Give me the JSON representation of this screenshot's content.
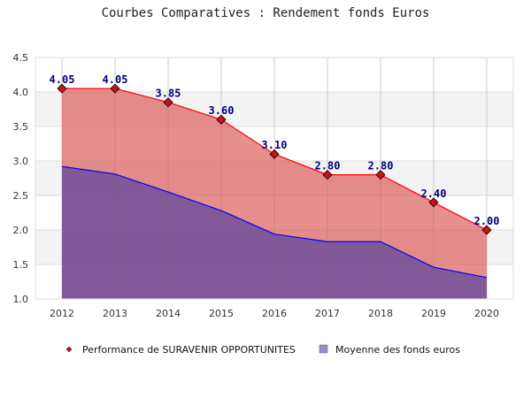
{
  "chart_data": {
    "type": "area",
    "title": "Courbes Comparatives : Rendement fonds Euros",
    "xlabel": "",
    "ylabel": "",
    "ylim": [
      1.0,
      4.5
    ],
    "yticks": [
      "1.0",
      "1.5",
      "2.0",
      "2.5",
      "3.0",
      "3.5",
      "4.0",
      "4.5"
    ],
    "categories": [
      "2012",
      "2013",
      "2014",
      "2015",
      "2016",
      "2017",
      "2018",
      "2019",
      "2020"
    ],
    "grid": true,
    "legend_position": "bottom",
    "series": [
      {
        "name": "Performance de SURAVENIR OPPORTUNITES",
        "values": [
          4.05,
          4.05,
          3.85,
          3.6,
          3.1,
          2.8,
          2.8,
          2.4,
          2.0
        ],
        "labels": [
          "4.05",
          "4.05",
          "3.85",
          "3.60",
          "3.10",
          "2.80",
          "2.80",
          "2.40",
          "2.00"
        ],
        "line_color": "#ff0000",
        "fill_color": "#d9534f",
        "marker_color": "#cc1111"
      },
      {
        "name": "Moyenne des fonds euros",
        "values": [
          2.92,
          2.81,
          2.55,
          2.28,
          1.94,
          1.83,
          1.83,
          1.46,
          1.31
        ],
        "line_color": "#0000ff",
        "fill_color": "#6a4c9c",
        "legend_color": "#9090d0"
      }
    ]
  }
}
